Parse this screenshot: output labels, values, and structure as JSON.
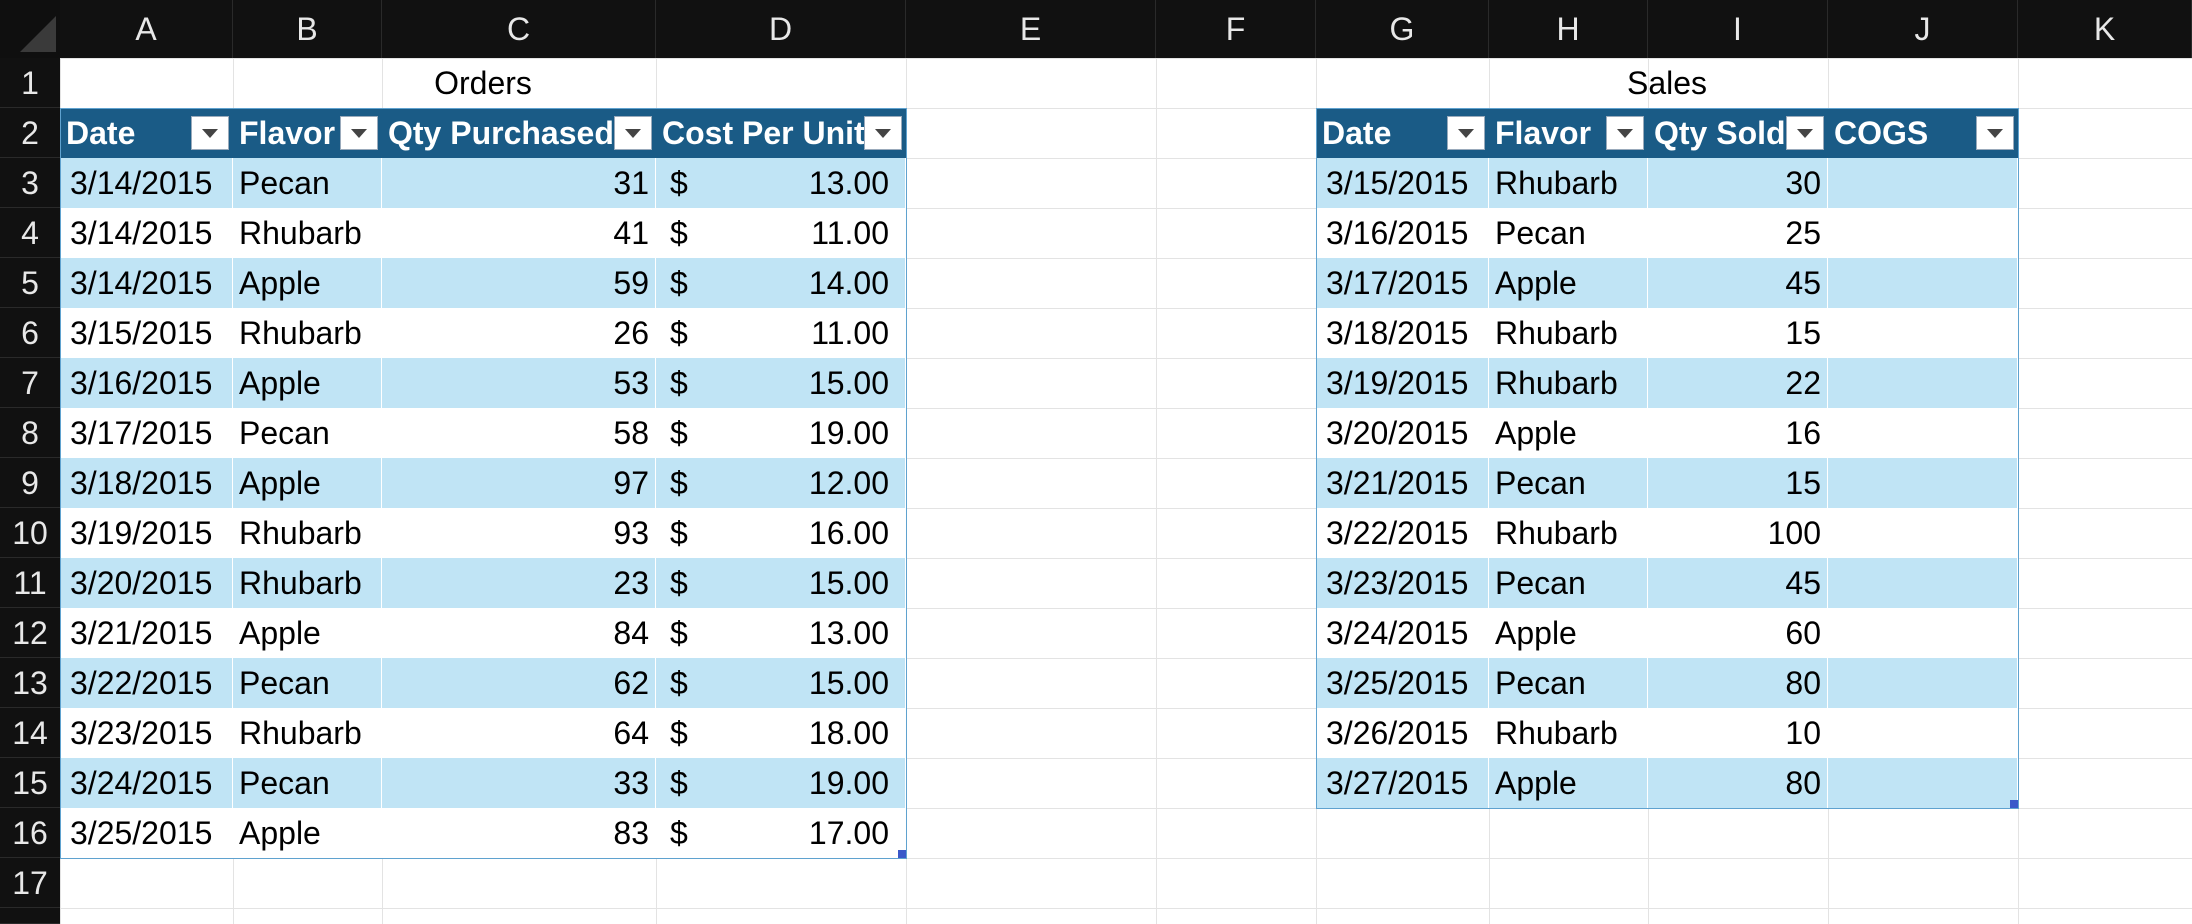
{
  "columns": [
    "A",
    "B",
    "C",
    "D",
    "E",
    "F",
    "G",
    "H",
    "I",
    "J",
    "K"
  ],
  "rows": [
    "1",
    "2",
    "3",
    "4",
    "5",
    "6",
    "7",
    "8",
    "9",
    "10",
    "11",
    "12",
    "13",
    "14",
    "15",
    "16",
    "17"
  ],
  "orders": {
    "title": "Orders",
    "headers": [
      "Date",
      "Flavor",
      "Qty Purchased",
      "Cost Per Unit"
    ],
    "rows": [
      [
        "3/14/2015",
        "Pecan",
        "31",
        "$",
        "13.00"
      ],
      [
        "3/14/2015",
        "Rhubarb",
        "41",
        "$",
        "11.00"
      ],
      [
        "3/14/2015",
        "Apple",
        "59",
        "$",
        "14.00"
      ],
      [
        "3/15/2015",
        "Rhubarb",
        "26",
        "$",
        "11.00"
      ],
      [
        "3/16/2015",
        "Apple",
        "53",
        "$",
        "15.00"
      ],
      [
        "3/17/2015",
        "Pecan",
        "58",
        "$",
        "19.00"
      ],
      [
        "3/18/2015",
        "Apple",
        "97",
        "$",
        "12.00"
      ],
      [
        "3/19/2015",
        "Rhubarb",
        "93",
        "$",
        "16.00"
      ],
      [
        "3/20/2015",
        "Rhubarb",
        "23",
        "$",
        "15.00"
      ],
      [
        "3/21/2015",
        "Apple",
        "84",
        "$",
        "13.00"
      ],
      [
        "3/22/2015",
        "Pecan",
        "62",
        "$",
        "15.00"
      ],
      [
        "3/23/2015",
        "Rhubarb",
        "64",
        "$",
        "18.00"
      ],
      [
        "3/24/2015",
        "Pecan",
        "33",
        "$",
        "19.00"
      ],
      [
        "3/25/2015",
        "Apple",
        "83",
        "$",
        "17.00"
      ]
    ]
  },
  "sales": {
    "title": "Sales",
    "headers": [
      "Date",
      "Flavor",
      "Qty Sold",
      "COGS"
    ],
    "rows": [
      [
        "3/15/2015",
        "Rhubarb",
        "30",
        ""
      ],
      [
        "3/16/2015",
        "Pecan",
        "25",
        ""
      ],
      [
        "3/17/2015",
        "Apple",
        "45",
        ""
      ],
      [
        "3/18/2015",
        "Rhubarb",
        "15",
        ""
      ],
      [
        "3/19/2015",
        "Rhubarb",
        "22",
        ""
      ],
      [
        "3/20/2015",
        "Apple",
        "16",
        ""
      ],
      [
        "3/21/2015",
        "Pecan",
        "15",
        ""
      ],
      [
        "3/22/2015",
        "Rhubarb",
        "100",
        ""
      ],
      [
        "3/23/2015",
        "Pecan",
        "45",
        ""
      ],
      [
        "3/24/2015",
        "Apple",
        "60",
        ""
      ],
      [
        "3/25/2015",
        "Pecan",
        "80",
        ""
      ],
      [
        "3/26/2015",
        "Rhubarb",
        "10",
        ""
      ],
      [
        "3/27/2015",
        "Apple",
        "80",
        ""
      ]
    ]
  },
  "colors": {
    "header_bg": "#111111",
    "table_header": "#1a5b86",
    "band": "#c0e4f5",
    "gridline": "#e3e3e3"
  },
  "icons": [
    "filter-dropdown-icon",
    "table-resize-handle-icon",
    "select-all-corner-icon"
  ]
}
